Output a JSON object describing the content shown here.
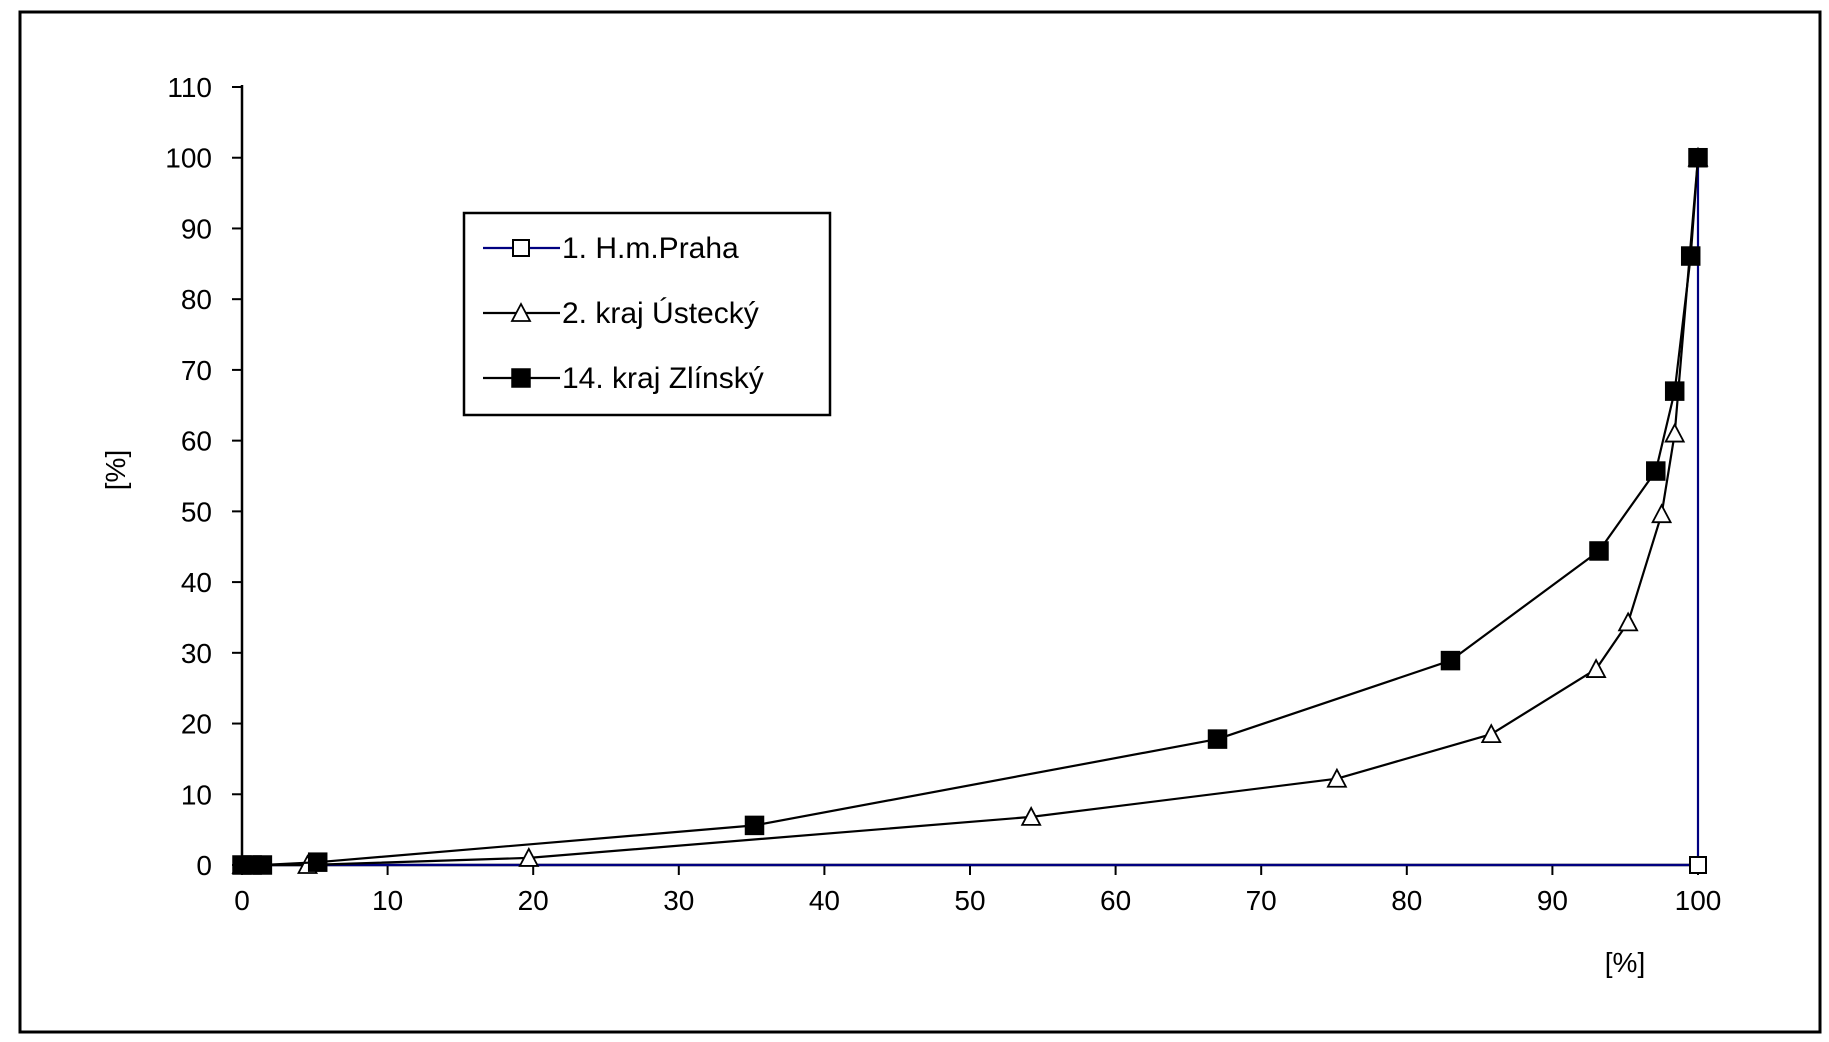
{
  "chart_data": {
    "type": "line",
    "title": "",
    "xlabel": "[%]",
    "ylabel": "[%]",
    "xlim": [
      0,
      100
    ],
    "ylim": [
      0,
      110
    ],
    "xticks": [
      0,
      10,
      20,
      30,
      40,
      50,
      60,
      70,
      80,
      90,
      100
    ],
    "yticks": [
      0,
      10,
      20,
      30,
      40,
      50,
      60,
      70,
      80,
      90,
      100,
      110
    ],
    "grid": false,
    "legend_position": "top-left",
    "series": [
      {
        "name": "1. H.m.Praha",
        "marker": "square-open",
        "color": "#000080",
        "points": [
          [
            0,
            0
          ],
          [
            100,
            0
          ],
          [
            100,
            100
          ]
        ]
      },
      {
        "name": "2. kraj Ústecký",
        "marker": "triangle-open",
        "color": "#000000",
        "points": [
          [
            0,
            0
          ],
          [
            4.5,
            0
          ],
          [
            19.7,
            1
          ],
          [
            54.2,
            6.8
          ],
          [
            75.2,
            12.2
          ],
          [
            85.8,
            18.5
          ],
          [
            93,
            27.7
          ],
          [
            95.2,
            34.3
          ],
          [
            97.5,
            49.6
          ],
          [
            98.4,
            61
          ],
          [
            100,
            100
          ]
        ]
      },
      {
        "name": "14. kraj Zlínský",
        "marker": "square-filled",
        "color": "#000000",
        "points": [
          [
            0,
            0
          ],
          [
            0.7,
            0
          ],
          [
            1.4,
            0
          ],
          [
            5.2,
            0.4
          ],
          [
            35.2,
            5.6
          ],
          [
            67,
            17.8
          ],
          [
            83,
            28.9
          ],
          [
            93.2,
            44.4
          ],
          [
            97.1,
            55.7
          ],
          [
            98.4,
            67
          ],
          [
            99.5,
            86.1
          ],
          [
            100,
            100
          ]
        ]
      }
    ]
  }
}
